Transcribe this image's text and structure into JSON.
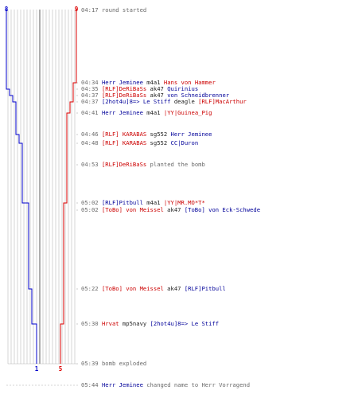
{
  "graph": {
    "top_left_count": "8",
    "top_right_count": "9",
    "bottom_left_count": "1",
    "bottom_right_count": "5",
    "team_colors": {
      "ct": "#0000cc",
      "t": "#dd0000",
      "grid": "#b8b8b8",
      "center": "#777777"
    }
  },
  "events": [
    {
      "time": "04:17",
      "parts": [
        {
          "text": "round started",
          "c": "sys"
        }
      ]
    },
    {
      "time": "04:34",
      "parts": [
        {
          "text": "Herr Jeminee",
          "c": "blue"
        },
        {
          "text": " m4a1 ",
          "c": "black"
        },
        {
          "text": "Hans von Hammer",
          "c": "red"
        }
      ]
    },
    {
      "time": "04:35",
      "parts": [
        {
          "text": "[RLF]DeRiBaSs",
          "c": "red"
        },
        {
          "text": " ak47 ",
          "c": "black"
        },
        {
          "text": "Quirinius",
          "c": "blue"
        }
      ]
    },
    {
      "time": "04:37",
      "parts": [
        {
          "text": "[RLF]DeRiBaSs",
          "c": "red"
        },
        {
          "text": " ak47 ",
          "c": "black"
        },
        {
          "text": "von Schneidbrenner",
          "c": "blue"
        }
      ]
    },
    {
      "time": "04:37",
      "parts": [
        {
          "text": "[2hot4u]8=> Le Stiff",
          "c": "blue"
        },
        {
          "text": " deagle ",
          "c": "black"
        },
        {
          "text": "[RLF]MacArthur",
          "c": "red"
        }
      ]
    },
    {
      "time": "04:41",
      "parts": [
        {
          "text": "Herr Jeminee",
          "c": "blue"
        },
        {
          "text": " m4a1 ",
          "c": "black"
        },
        {
          "text": "|YY|Guinea_Pig",
          "c": "red"
        }
      ]
    },
    {
      "time": "04:46",
      "parts": [
        {
          "text": "[RLF] KARABAS",
          "c": "red"
        },
        {
          "text": " sg552 ",
          "c": "black"
        },
        {
          "text": "Herr Jeminee",
          "c": "blue"
        }
      ]
    },
    {
      "time": "04:48",
      "parts": [
        {
          "text": "[RLF] KARABAS",
          "c": "red"
        },
        {
          "text": " sg552 ",
          "c": "black"
        },
        {
          "text": "CC|Duron",
          "c": "blue"
        }
      ]
    },
    {
      "time": "04:53",
      "parts": [
        {
          "text": "[RLF]DeRiBaSs",
          "c": "red"
        },
        {
          "text": " planted the bomb",
          "c": "sys"
        }
      ]
    },
    {
      "time": "05:02",
      "parts": [
        {
          "text": "[RLF]Pitbull",
          "c": "blue"
        },
        {
          "text": " m4a1 ",
          "c": "black"
        },
        {
          "text": "|YY|MR.MO*T*",
          "c": "red"
        }
      ]
    },
    {
      "time": "05:02",
      "parts": [
        {
          "text": "[ToBo] von Meissel",
          "c": "red"
        },
        {
          "text": " ak47 ",
          "c": "black"
        },
        {
          "text": "[ToBo] von Eck-Schwede",
          "c": "blue"
        }
      ]
    },
    {
      "time": "05:22",
      "parts": [
        {
          "text": "[ToBo] von Meissel",
          "c": "red"
        },
        {
          "text": " ak47 ",
          "c": "black"
        },
        {
          "text": "[RLF]Pitbull",
          "c": "blue"
        }
      ]
    },
    {
      "time": "05:30",
      "parts": [
        {
          "text": "Hrvat",
          "c": "red"
        },
        {
          "text": " mp5navy ",
          "c": "black"
        },
        {
          "text": "[2hot4u]8=> Le Stiff",
          "c": "blue"
        }
      ]
    },
    {
      "time": "05:39",
      "parts": [
        {
          "text": "bomb exploded",
          "c": "sys"
        }
      ]
    },
    {
      "time": "05:44",
      "parts": [
        {
          "text": "Herr Jeminee",
          "c": "blue"
        },
        {
          "text": " changed name to Herr Vorragend",
          "c": "sys"
        }
      ]
    }
  ]
}
